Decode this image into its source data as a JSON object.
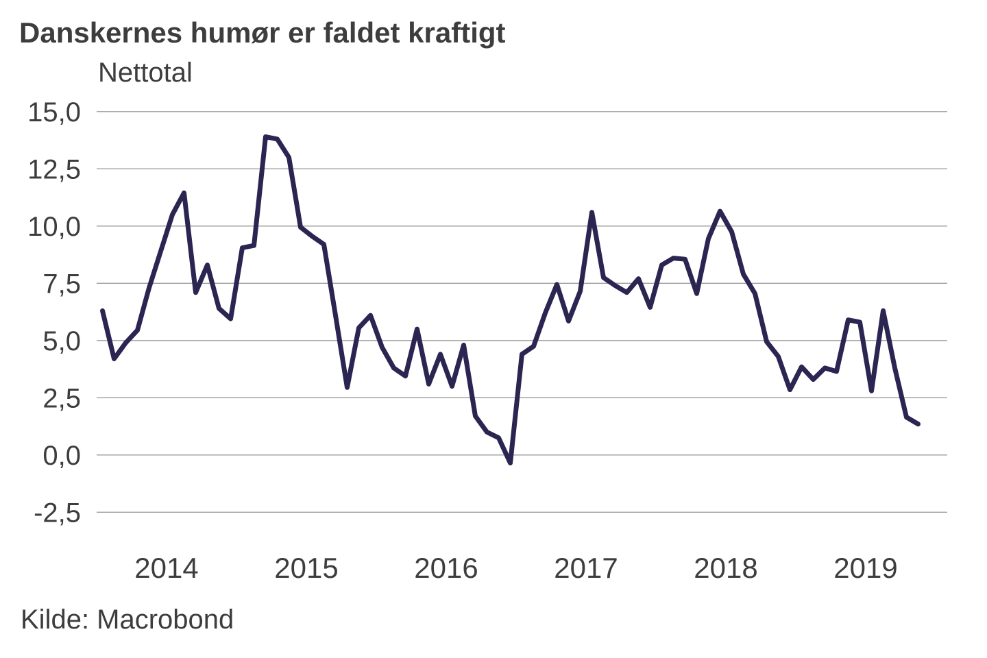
{
  "title": "Danskernes humør er faldet kraftigt",
  "subtitle": "Nettotal",
  "source": "Kilde: Macrobond",
  "colors": {
    "background": "#FFFFFF",
    "text": "#3D3D3D",
    "grid": "#9B9B9B",
    "line": "#2A2551"
  },
  "chart_data": {
    "type": "line",
    "title": "Danskernes humør er faldet kraftigt",
    "xlabel": "",
    "ylabel": "Nettotal",
    "ylim": [
      -2.5,
      15.0
    ],
    "y_ticks": [
      15.0,
      12.5,
      10.0,
      7.5,
      5.0,
      2.5,
      0.0,
      -2.5
    ],
    "y_tick_labels": [
      "15,0",
      "12,5",
      "10,0",
      "7,5",
      "5,0",
      "2,5",
      "0,0",
      "-2,5"
    ],
    "x_tick_labels": [
      "2014",
      "2015",
      "2016",
      "2017",
      "2018",
      "2019"
    ],
    "grid": "horizontal-only",
    "legend_position": "none",
    "frequency": "monthly",
    "x": [
      "2014-01",
      "2014-02",
      "2014-03",
      "2014-04",
      "2014-05",
      "2014-06",
      "2014-07",
      "2014-08",
      "2014-09",
      "2014-10",
      "2014-11",
      "2014-12",
      "2015-01",
      "2015-02",
      "2015-03",
      "2015-04",
      "2015-05",
      "2015-06",
      "2015-07",
      "2015-08",
      "2015-09",
      "2015-10",
      "2015-11",
      "2015-12",
      "2016-01",
      "2016-02",
      "2016-03",
      "2016-04",
      "2016-05",
      "2016-06",
      "2016-07",
      "2016-08",
      "2016-09",
      "2016-10",
      "2016-11",
      "2016-12",
      "2017-01",
      "2017-02",
      "2017-03",
      "2017-04",
      "2017-05",
      "2017-06",
      "2017-07",
      "2017-08",
      "2017-09",
      "2017-10",
      "2017-11",
      "2017-12",
      "2018-01",
      "2018-02",
      "2018-03",
      "2018-04",
      "2018-05",
      "2018-06",
      "2018-07",
      "2018-08",
      "2018-09",
      "2018-10",
      "2018-11",
      "2018-12",
      "2019-01",
      "2019-02",
      "2019-03",
      "2019-04",
      "2019-05",
      "2019-06",
      "2019-07",
      "2019-08",
      "2019-09",
      "2019-10",
      "2019-11"
    ],
    "series": [
      {
        "name": "Nettotal",
        "values": [
          6.3,
          4.2,
          4.9,
          5.45,
          7.3,
          8.9,
          10.5,
          11.45,
          7.1,
          8.3,
          6.4,
          5.95,
          9.05,
          9.15,
          13.9,
          13.8,
          13.0,
          9.95,
          9.55,
          9.2,
          6.1,
          2.95,
          5.55,
          6.1,
          4.7,
          3.8,
          3.45,
          5.5,
          3.1,
          4.4,
          3.0,
          4.8,
          1.7,
          1.0,
          0.75,
          -0.35,
          4.4,
          4.75,
          6.2,
          7.45,
          5.85,
          7.15,
          10.6,
          7.75,
          7.4,
          7.1,
          7.7,
          6.45,
          8.3,
          8.6,
          8.55,
          7.05,
          9.45,
          10.65,
          9.75,
          7.9,
          7.05,
          4.95,
          4.3,
          2.85,
          3.85,
          3.3,
          3.8,
          3.65,
          5.9,
          5.8,
          2.8,
          6.3,
          3.8,
          1.65,
          1.35
        ]
      }
    ]
  }
}
